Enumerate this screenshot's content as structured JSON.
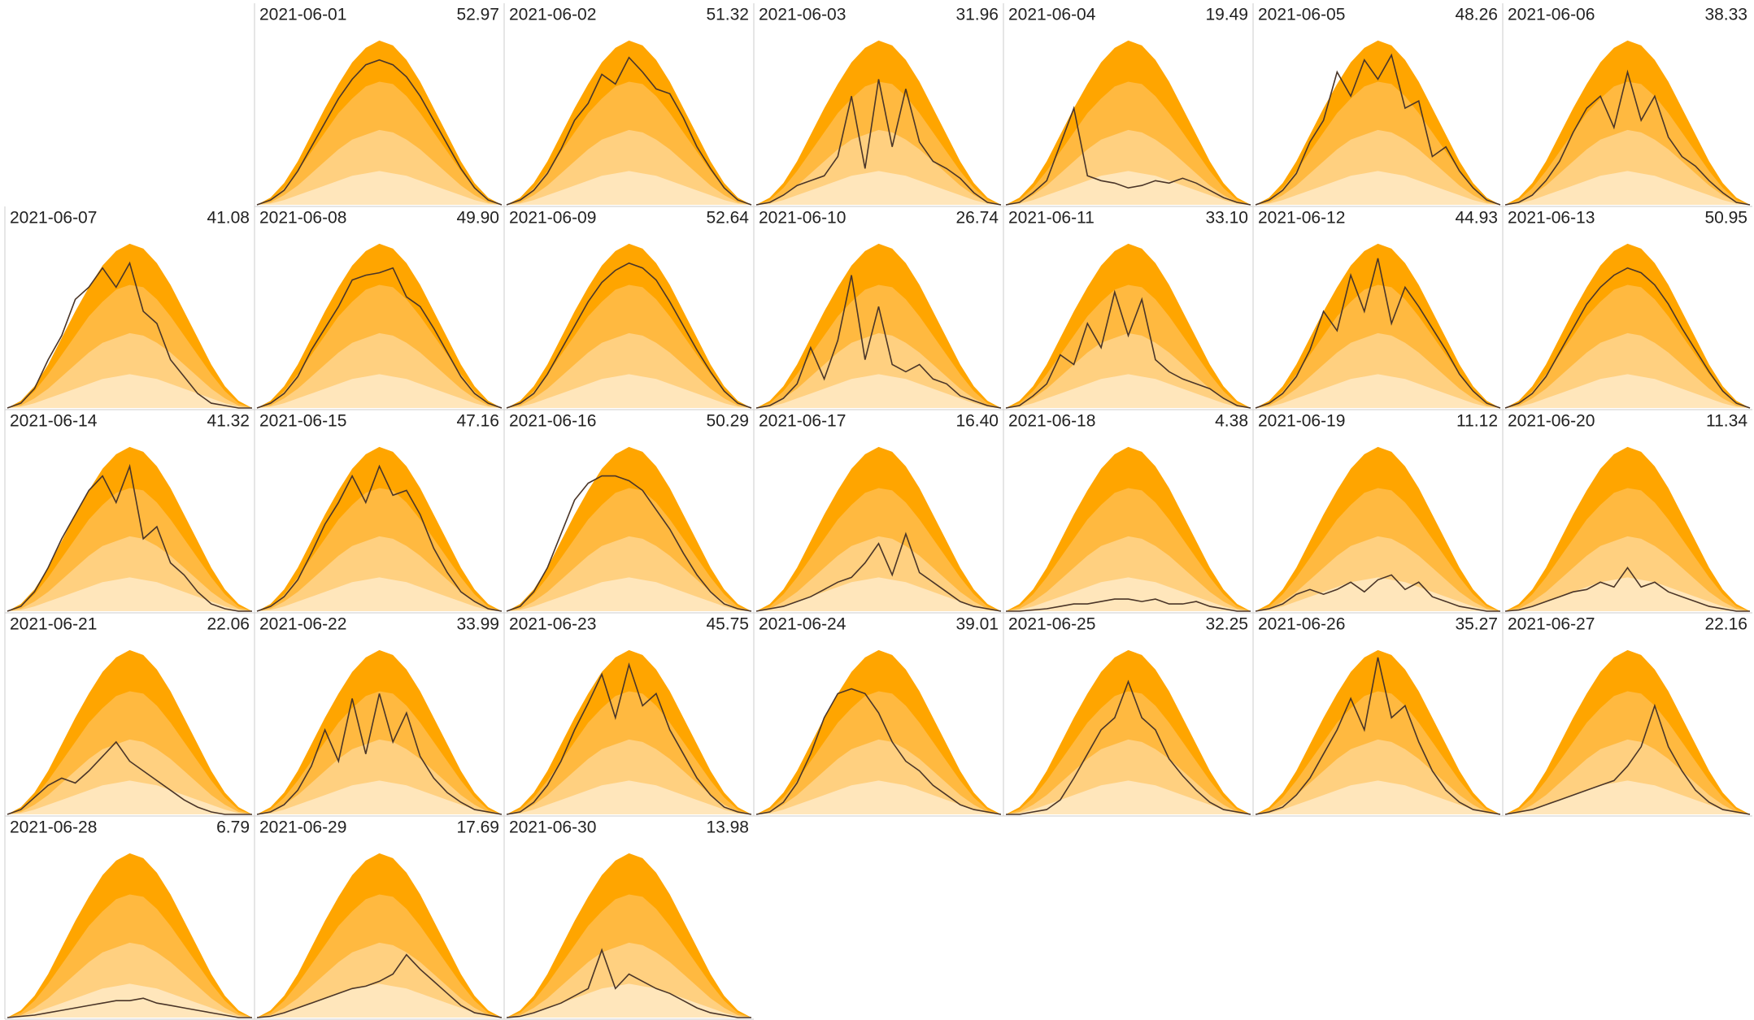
{
  "chart_data": {
    "type": "calendar",
    "x": [
      4,
      5,
      6,
      7,
      8,
      9,
      10,
      11,
      12,
      13,
      14,
      15,
      16,
      17,
      18,
      19,
      20,
      21,
      22
    ],
    "ylim": [
      0,
      7
    ],
    "line_color": "#4a3528",
    "bands": [
      {
        "color": "#ffa500",
        "values": [
          0,
          0.3,
          0.9,
          1.8,
          2.9,
          4.0,
          5.0,
          5.9,
          6.5,
          6.8,
          6.6,
          6.0,
          5.1,
          4.0,
          2.9,
          1.8,
          0.9,
          0.3,
          0
        ]
      },
      {
        "color": "#ffb940",
        "values": [
          0,
          0.2,
          0.7,
          1.4,
          2.2,
          3.0,
          3.8,
          4.4,
          4.9,
          5.1,
          5.0,
          4.5,
          3.8,
          3.0,
          2.2,
          1.4,
          0.7,
          0.2,
          0
        ]
      },
      {
        "color": "#ffd080",
        "values": [
          0,
          0.1,
          0.4,
          0.8,
          1.3,
          1.8,
          2.3,
          2.7,
          2.9,
          3.1,
          3.0,
          2.7,
          2.3,
          1.8,
          1.3,
          0.8,
          0.4,
          0.1,
          0
        ]
      },
      {
        "color": "#ffe6bb",
        "values": [
          0,
          0.05,
          0.2,
          0.4,
          0.6,
          0.8,
          1.0,
          1.2,
          1.3,
          1.4,
          1.3,
          1.2,
          1.0,
          0.8,
          0.6,
          0.4,
          0.2,
          0.05,
          0
        ]
      }
    ],
    "days": [
      {
        "date": "2021-06-01",
        "total": 52.97,
        "values": [
          0,
          0.2,
          0.6,
          1.4,
          2.4,
          3.4,
          4.4,
          5.2,
          5.8,
          6,
          5.8,
          5.3,
          4.5,
          3.5,
          2.5,
          1.5,
          0.7,
          0.2,
          0
        ]
      },
      {
        "date": "2021-06-02",
        "total": 51.32,
        "values": [
          0,
          0.2,
          0.6,
          1.3,
          2.3,
          3.5,
          4.2,
          5.4,
          5.0,
          6.1,
          5.5,
          4.8,
          4.6,
          3.6,
          2.4,
          1.5,
          0.7,
          0.2,
          0
        ]
      },
      {
        "date": "2021-06-03",
        "total": 31.96,
        "values": [
          0,
          0.1,
          0.4,
          0.8,
          1.0,
          1.2,
          2.0,
          4.5,
          1.5,
          5.2,
          2.4,
          4.8,
          2.6,
          1.8,
          1.5,
          1.1,
          0.5,
          0.1,
          0
        ]
      },
      {
        "date": "2021-06-04",
        "total": 19.49,
        "values": [
          0,
          0.1,
          0.5,
          1.0,
          2.5,
          4.0,
          1.2,
          1.0,
          0.9,
          0.7,
          0.8,
          1.0,
          0.9,
          1.1,
          0.9,
          0.6,
          0.3,
          0.1,
          0
        ]
      },
      {
        "date": "2021-06-05",
        "total": 48.26,
        "values": [
          0,
          0.2,
          0.6,
          1.3,
          2.6,
          3.5,
          5.5,
          4.5,
          6.0,
          5.2,
          6.2,
          4.0,
          4.3,
          2.0,
          2.4,
          1.4,
          0.7,
          0.2,
          0
        ]
      },
      {
        "date": "2021-06-06",
        "total": 38.33,
        "values": [
          0,
          0.1,
          0.4,
          1.0,
          1.8,
          3.0,
          4.0,
          4.5,
          3.2,
          5.5,
          3.5,
          4.5,
          2.8,
          2.0,
          1.6,
          1.0,
          0.5,
          0.1,
          0
        ]
      },
      {
        "date": "2021-06-07",
        "total": 41.08,
        "values": [
          0,
          0.2,
          0.8,
          2.0,
          3.0,
          4.5,
          5.0,
          5.8,
          5.0,
          6.0,
          4.0,
          3.5,
          2.0,
          1.3,
          0.6,
          0.2,
          0.1,
          0,
          0
        ]
      },
      {
        "date": "2021-06-08",
        "total": 49.9,
        "total_label": "49.90",
        "values": [
          0,
          0.2,
          0.6,
          1.3,
          2.4,
          3.3,
          4.2,
          5.3,
          5.5,
          5.6,
          5.8,
          4.6,
          4.2,
          3.3,
          2.3,
          1.3,
          0.6,
          0.2,
          0
        ]
      },
      {
        "date": "2021-06-09",
        "total": 52.64,
        "values": [
          0,
          0.2,
          0.6,
          1.4,
          2.4,
          3.4,
          4.4,
          5.2,
          5.7,
          6,
          5.8,
          5.3,
          4.4,
          3.4,
          2.4,
          1.5,
          0.7,
          0.2,
          0
        ]
      },
      {
        "date": "2021-06-10",
        "total": 26.74,
        "values": [
          0,
          0.1,
          0.4,
          1.0,
          2.5,
          1.2,
          2.8,
          5.5,
          2.0,
          4.2,
          1.8,
          1.5,
          1.8,
          1.2,
          1.0,
          0.5,
          0.3,
          0.1,
          0
        ]
      },
      {
        "date": "2021-06-11",
        "total": 33.1,
        "total_label": "33.10",
        "values": [
          0,
          0.1,
          0.5,
          1.0,
          2.2,
          1.8,
          3.5,
          2.5,
          4.8,
          3.0,
          4.5,
          2.0,
          1.5,
          1.2,
          1.0,
          0.8,
          0.4,
          0.1,
          0
        ]
      },
      {
        "date": "2021-06-12",
        "total": 44.93,
        "values": [
          0,
          0.2,
          0.6,
          1.3,
          2.4,
          4.0,
          3.2,
          5.5,
          4.0,
          6.2,
          3.5,
          5.0,
          4.2,
          3.3,
          2.4,
          1.4,
          0.7,
          0.2,
          0
        ]
      },
      {
        "date": "2021-06-13",
        "total": 50.95,
        "values": [
          0,
          0.2,
          0.6,
          1.3,
          2.3,
          3.3,
          4.3,
          5.0,
          5.5,
          5.8,
          5.6,
          5.1,
          4.3,
          3.3,
          2.4,
          1.5,
          0.7,
          0.2,
          0
        ]
      },
      {
        "date": "2021-06-14",
        "total": 41.32,
        "values": [
          0,
          0.2,
          0.8,
          1.8,
          3.0,
          4.0,
          5.0,
          5.6,
          4.5,
          6.0,
          3.0,
          3.5,
          2.0,
          1.5,
          0.8,
          0.3,
          0.1,
          0,
          0
        ]
      },
      {
        "date": "2021-06-15",
        "total": 47.16,
        "values": [
          0,
          0.2,
          0.6,
          1.3,
          2.4,
          3.6,
          4.5,
          5.6,
          4.5,
          6.0,
          4.8,
          5.0,
          4.0,
          2.6,
          1.6,
          0.8,
          0.4,
          0.1,
          0
        ]
      },
      {
        "date": "2021-06-16",
        "total": 50.29,
        "values": [
          0,
          0.2,
          0.8,
          1.8,
          3.2,
          4.6,
          5.3,
          5.6,
          5.6,
          5.4,
          5.0,
          4.2,
          3.4,
          2.4,
          1.5,
          0.8,
          0.3,
          0.1,
          0
        ]
      },
      {
        "date": "2021-06-17",
        "total": 16.4,
        "total_label": "16.40",
        "values": [
          0,
          0.1,
          0.2,
          0.4,
          0.6,
          0.9,
          1.2,
          1.4,
          2.0,
          2.8,
          1.5,
          3.2,
          1.6,
          1.2,
          0.8,
          0.4,
          0.2,
          0.1,
          0
        ]
      },
      {
        "date": "2021-06-18",
        "total": 4.38,
        "values": [
          0,
          0,
          0.05,
          0.1,
          0.2,
          0.3,
          0.3,
          0.4,
          0.5,
          0.5,
          0.4,
          0.5,
          0.3,
          0.3,
          0.4,
          0.2,
          0.1,
          0,
          0
        ]
      },
      {
        "date": "2021-06-19",
        "total": 11.12,
        "values": [
          0,
          0.1,
          0.3,
          0.7,
          0.9,
          0.7,
          0.9,
          1.2,
          0.8,
          1.3,
          1.5,
          0.9,
          1.2,
          0.6,
          0.4,
          0.2,
          0.1,
          0,
          0
        ]
      },
      {
        "date": "2021-06-20",
        "total": 11.34,
        "values": [
          0,
          0.05,
          0.2,
          0.4,
          0.6,
          0.8,
          0.9,
          1.2,
          1.0,
          1.8,
          1.0,
          1.2,
          0.8,
          0.6,
          0.4,
          0.2,
          0.1,
          0,
          0
        ]
      },
      {
        "date": "2021-06-21",
        "total": 22.06,
        "values": [
          0,
          0.2,
          0.7,
          1.2,
          1.5,
          1.3,
          1.8,
          2.4,
          3.0,
          2.2,
          1.8,
          1.4,
          1.0,
          0.6,
          0.3,
          0.1,
          0,
          0,
          0
        ]
      },
      {
        "date": "2021-06-22",
        "total": 33.99,
        "values": [
          0,
          0.1,
          0.4,
          1.0,
          2.0,
          3.5,
          2.2,
          4.8,
          2.5,
          5.0,
          3.0,
          4.2,
          2.4,
          1.5,
          0.9,
          0.5,
          0.2,
          0.1,
          0
        ]
      },
      {
        "date": "2021-06-23",
        "total": 45.75,
        "values": [
          0,
          0.1,
          0.5,
          1.2,
          2.2,
          3.5,
          4.6,
          5.8,
          4.0,
          6.2,
          4.5,
          5.0,
          3.5,
          2.5,
          1.5,
          0.8,
          0.3,
          0.1,
          0
        ]
      },
      {
        "date": "2021-06-24",
        "total": 39.01,
        "values": [
          0,
          0.1,
          0.5,
          1.3,
          2.5,
          4.0,
          5.0,
          5.2,
          5.0,
          4.2,
          3.0,
          2.2,
          1.8,
          1.2,
          0.8,
          0.4,
          0.2,
          0.1,
          0
        ]
      },
      {
        "date": "2021-06-25",
        "total": 32.25,
        "values": [
          0,
          0,
          0.1,
          0.2,
          0.6,
          1.5,
          2.5,
          3.5,
          4.0,
          5.5,
          4.0,
          3.5,
          2.3,
          1.6,
          1.0,
          0.5,
          0.2,
          0.1,
          0
        ]
      },
      {
        "date": "2021-06-26",
        "total": 35.27,
        "values": [
          0,
          0.1,
          0.3,
          0.8,
          1.5,
          2.5,
          3.5,
          4.8,
          3.5,
          6.5,
          4.0,
          4.5,
          3.0,
          1.8,
          1.0,
          0.5,
          0.2,
          0.1,
          0
        ]
      },
      {
        "date": "2021-06-27",
        "total": 22.16,
        "values": [
          0,
          0.1,
          0.2,
          0.4,
          0.6,
          0.8,
          1.0,
          1.2,
          1.4,
          2.0,
          2.8,
          4.5,
          2.8,
          1.8,
          1.0,
          0.5,
          0.2,
          0.1,
          0
        ]
      },
      {
        "date": "2021-06-28",
        "total": 6.79,
        "values": [
          0,
          0.05,
          0.1,
          0.2,
          0.3,
          0.4,
          0.5,
          0.6,
          0.7,
          0.7,
          0.8,
          0.6,
          0.5,
          0.4,
          0.3,
          0.2,
          0.1,
          0,
          0
        ]
      },
      {
        "date": "2021-06-29",
        "total": 17.69,
        "values": [
          0,
          0.05,
          0.2,
          0.4,
          0.6,
          0.8,
          1.0,
          1.2,
          1.3,
          1.5,
          1.8,
          2.6,
          2.0,
          1.5,
          1.0,
          0.5,
          0.2,
          0.1,
          0
        ]
      },
      {
        "date": "2021-06-30",
        "total": 13.98,
        "values": [
          0,
          0.05,
          0.2,
          0.4,
          0.6,
          0.9,
          1.2,
          2.8,
          1.2,
          1.8,
          1.5,
          1.2,
          1.0,
          0.7,
          0.4,
          0.2,
          0.1,
          0,
          0
        ]
      }
    ]
  }
}
